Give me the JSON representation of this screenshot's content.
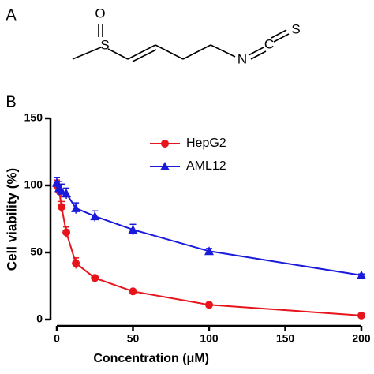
{
  "panel_labels": [
    "A",
    "B"
  ],
  "structure": {
    "atoms": [
      "O",
      "S",
      "N",
      "C",
      "S"
    ]
  },
  "chart_data": {
    "type": "line",
    "x_label": "Concentration (μM)",
    "y_label": "Cell viability (%)",
    "x": [
      0,
      1.5625,
      3.125,
      6.25,
      12.5,
      25,
      50,
      100,
      200
    ],
    "series": [
      {
        "name": "HepG2",
        "color": "#e8141b",
        "marker": "circle",
        "values": [
          100,
          96,
          84,
          65,
          42,
          31,
          21,
          11,
          3
        ],
        "errors": [
          4,
          4,
          4,
          4,
          4,
          2,
          1,
          1,
          1
        ]
      },
      {
        "name": "AML12",
        "color": "#1a1adb",
        "marker": "triangle",
        "values": [
          102,
          98,
          96,
          94,
          83,
          77,
          67,
          51,
          33
        ],
        "errors": [
          4,
          5,
          5,
          4,
          4,
          4,
          4,
          2,
          1
        ]
      }
    ],
    "xlim": [
      0,
      200
    ],
    "xticks": [
      0,
      50,
      100,
      150,
      200
    ],
    "ylim": [
      0,
      150
    ],
    "yticks": [
      0,
      50,
      100,
      150
    ],
    "legend": "upper right"
  }
}
